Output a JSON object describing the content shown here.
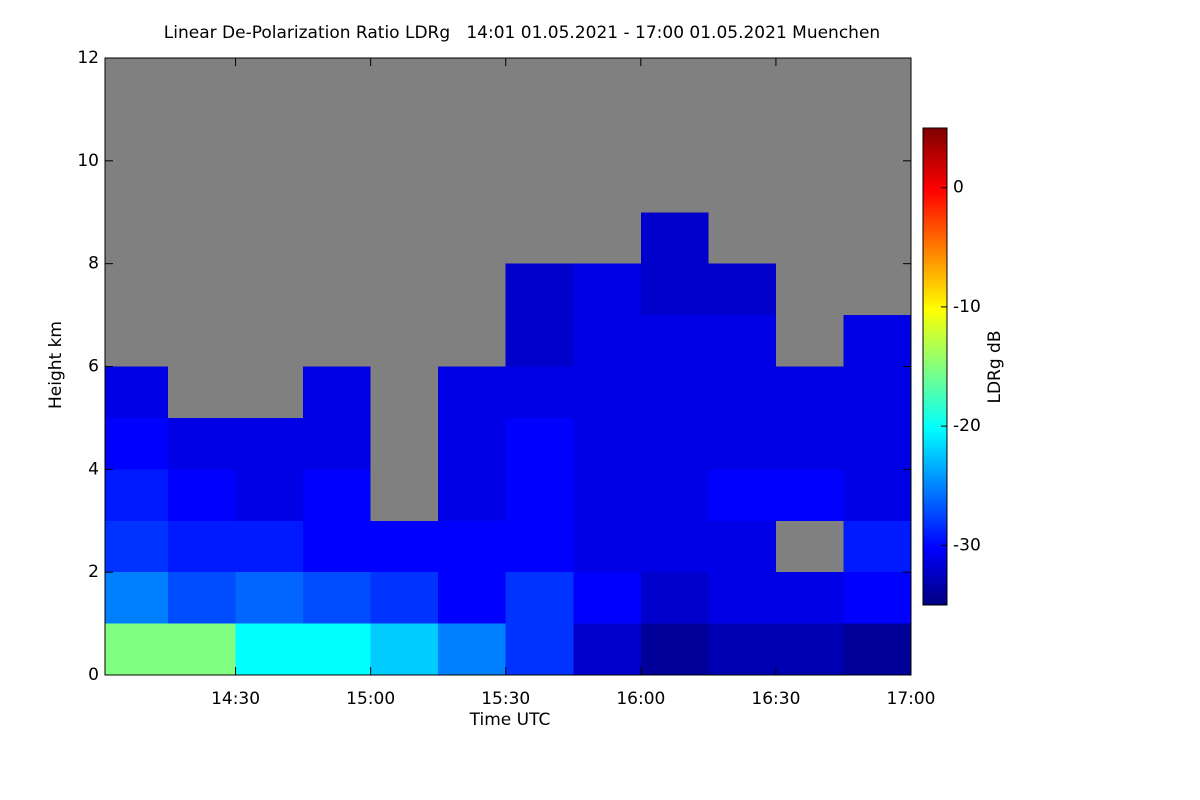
{
  "chart_data": {
    "type": "heatmap",
    "title": "Linear De-Polarization Ratio LDRg   14:01 01.05.2021 - 17:00 01.05.2021 Muenchen",
    "x_label": "Time UTC",
    "y_label": "Height km",
    "colorbar_label": "LDRg dB",
    "x": [
      14.125,
      14.375,
      14.625,
      14.875,
      15.125,
      15.375,
      15.625,
      15.875,
      16.125,
      16.375,
      16.625,
      16.875
    ],
    "y": [
      0.5,
      1.5,
      2.5,
      3.5,
      4.5,
      5.5,
      6.5,
      7.5,
      8.5,
      9.5,
      10.5,
      11.5
    ],
    "z": [
      [
        -15,
        -15,
        -20,
        -20,
        -22,
        -25,
        -28,
        -32,
        -34,
        -33,
        -33,
        -34
      ],
      [
        -25,
        -27,
        -26,
        -27,
        -28,
        -30,
        -28,
        -30,
        -32,
        -31,
        -31,
        -30
      ],
      [
        -28,
        -29,
        -29,
        -30,
        -30,
        -30,
        -30,
        -31,
        -31,
        -31,
        null,
        -29
      ],
      [
        -29,
        -30,
        -31,
        -30,
        null,
        -31,
        -30,
        -31,
        -31,
        -30,
        -30,
        -31
      ],
      [
        -30,
        -31,
        -31,
        -31,
        null,
        -31,
        -30,
        -31,
        -31,
        -31,
        -31,
        -31
      ],
      [
        -31,
        null,
        null,
        -31,
        null,
        -31,
        -31,
        -31,
        -31,
        -31,
        -31,
        -31
      ],
      [
        null,
        null,
        null,
        null,
        null,
        null,
        -32,
        -31,
        -31,
        -31,
        null,
        -31
      ],
      [
        null,
        null,
        null,
        null,
        null,
        null,
        -32,
        -31,
        -32,
        -32,
        null,
        null
      ],
      [
        null,
        null,
        null,
        null,
        null,
        null,
        null,
        null,
        -32,
        null,
        null,
        null
      ],
      [
        null,
        null,
        null,
        null,
        null,
        null,
        null,
        null,
        null,
        null,
        null,
        null
      ],
      [
        null,
        null,
        null,
        null,
        null,
        null,
        null,
        null,
        null,
        null,
        null,
        null
      ],
      [
        null,
        null,
        null,
        null,
        null,
        null,
        null,
        null,
        null,
        null,
        null,
        null
      ]
    ],
    "xlim": [
      14.0167,
      17.0
    ],
    "xticks": [
      {
        "value": 14.5,
        "label": "14:30"
      },
      {
        "value": 15.0,
        "label": "15:00"
      },
      {
        "value": 15.5,
        "label": "15:30"
      },
      {
        "value": 16.0,
        "label": "16:00"
      },
      {
        "value": 16.5,
        "label": "16:30"
      },
      {
        "value": 17.0,
        "label": "17:00"
      }
    ],
    "ylim": [
      0,
      12
    ],
    "yticks": [
      0,
      2,
      4,
      6,
      8,
      10,
      12
    ],
    "zlim": [
      -35,
      5
    ],
    "zticks": [
      0,
      -10,
      -20,
      -30
    ],
    "colormap": "jet",
    "missing_color": "#808080"
  }
}
